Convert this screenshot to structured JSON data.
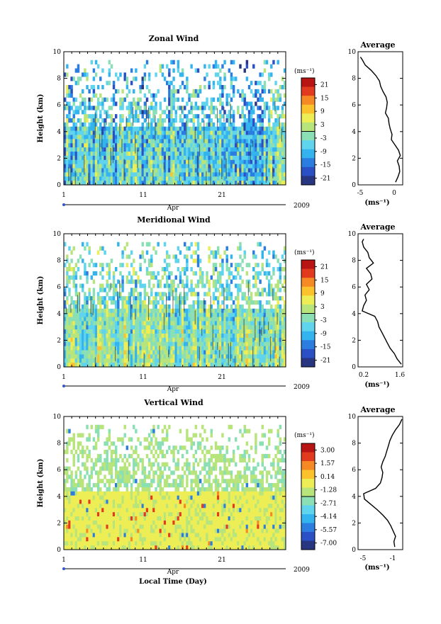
{
  "chart_data": [
    {
      "type": "heatmap",
      "title": "Zonal Wind",
      "ylabel": "Height (km)",
      "ylim": [
        0,
        10
      ],
      "yticks": [
        "0",
        "2",
        "4",
        "6",
        "8",
        "10"
      ],
      "xticks": [
        "1",
        "11",
        "21"
      ],
      "month": "Apr",
      "year": "2009",
      "colorbar": {
        "unit": "(ms⁻¹)",
        "labels": [
          "21",
          "15",
          "9",
          "3",
          "-3",
          "-9",
          "-15",
          "-21"
        ],
        "range": [
          -24,
          24
        ]
      },
      "average": {
        "title": "Average",
        "xlabel": "(ms⁻¹)",
        "xticks": [
          "-5",
          "0"
        ],
        "xlim": [
          -6,
          1.5
        ],
        "heights": [
          0.2,
          0.6,
          1.0,
          1.4,
          1.8,
          2.2,
          2.6,
          3.0,
          3.4,
          3.8,
          4.2,
          4.6,
          5.0,
          5.4,
          5.8,
          6.2,
          6.6,
          7.0,
          7.4,
          7.8,
          8.2,
          8.6,
          9.0,
          9.4,
          9.6
        ],
        "values": [
          0.3,
          0.7,
          1.0,
          0.9,
          0.6,
          1.1,
          0.8,
          0.2,
          -0.4,
          -0.3,
          -0.6,
          -0.8,
          -0.9,
          -1.4,
          -1.2,
          -1.1,
          -1.3,
          -1.8,
          -2.2,
          -2.4,
          -3.0,
          -3.8,
          -4.8,
          -5.3,
          -5.6
        ]
      }
    },
    {
      "type": "heatmap",
      "title": "Meridional Wind",
      "ylabel": "Height (km)",
      "ylim": [
        0,
        10
      ],
      "yticks": [
        "0",
        "2",
        "4",
        "6",
        "8",
        "10"
      ],
      "xticks": [
        "1",
        "11",
        "21"
      ],
      "month": "Apr",
      "year": "2009",
      "colorbar": {
        "unit": "(ms⁻¹)",
        "labels": [
          "21",
          "15",
          "9",
          "3",
          "-3",
          "-9",
          "-15",
          "-21"
        ],
        "range": [
          -24,
          24
        ]
      },
      "average": {
        "title": "Average",
        "xlabel": "(ms⁻¹)",
        "xticks": [
          "0.2",
          "1.6"
        ],
        "xlim": [
          0,
          1.6
        ],
        "heights": [
          0.2,
          0.6,
          1.0,
          1.4,
          1.8,
          2.2,
          2.6,
          3.0,
          3.4,
          3.8,
          4.2,
          4.6,
          5.0,
          5.4,
          5.8,
          6.2,
          6.6,
          7.0,
          7.4,
          7.8,
          8.2,
          8.6,
          9.0,
          9.4,
          9.6
        ],
        "values": [
          1.55,
          1.4,
          1.3,
          1.15,
          1.05,
          0.95,
          0.85,
          0.75,
          0.7,
          0.6,
          0.15,
          0.2,
          0.3,
          0.25,
          0.4,
          0.3,
          0.5,
          0.45,
          0.3,
          0.55,
          0.4,
          0.35,
          0.2,
          0.15,
          0.2
        ]
      }
    },
    {
      "type": "heatmap",
      "title": "Vertical Wind",
      "ylabel": "Height (km)",
      "ylim": [
        0,
        10
      ],
      "yticks": [
        "0",
        "2",
        "4",
        "6",
        "8",
        "10"
      ],
      "xticks": [
        "1",
        "11",
        "21"
      ],
      "month": "Apr",
      "year": "2009",
      "xlabel": "Local Time (Day)",
      "colorbar": {
        "unit": "(ms⁻¹)",
        "labels": [
          "3.00",
          "1.57",
          "0.14",
          "-1.28",
          "-2.71",
          "-4.14",
          "-5.57",
          "-7.00"
        ],
        "range": [
          -8,
          4
        ]
      },
      "average": {
        "title": "Average",
        "xlabel": "(ms⁻¹)",
        "xticks": [
          "-5",
          "-1"
        ],
        "xlim": [
          -5.8,
          -0.2
        ],
        "heights": [
          0.2,
          0.6,
          1.0,
          1.4,
          1.8,
          2.2,
          2.6,
          3.0,
          3.4,
          3.8,
          4.2,
          4.6,
          5.0,
          5.4,
          5.8,
          6.2,
          6.6,
          7.0,
          7.4,
          7.8,
          8.2,
          8.6,
          9.0,
          9.4,
          9.8
        ],
        "values": [
          -1.2,
          -1.3,
          -1.1,
          -1.4,
          -1.7,
          -2.1,
          -2.7,
          -3.4,
          -4.2,
          -5.0,
          -5.1,
          -3.6,
          -3.0,
          -2.8,
          -2.7,
          -2.9,
          -2.7,
          -2.4,
          -2.2,
          -2.0,
          -1.8,
          -1.5,
          -1.1,
          -0.6,
          -0.3
        ]
      }
    }
  ]
}
